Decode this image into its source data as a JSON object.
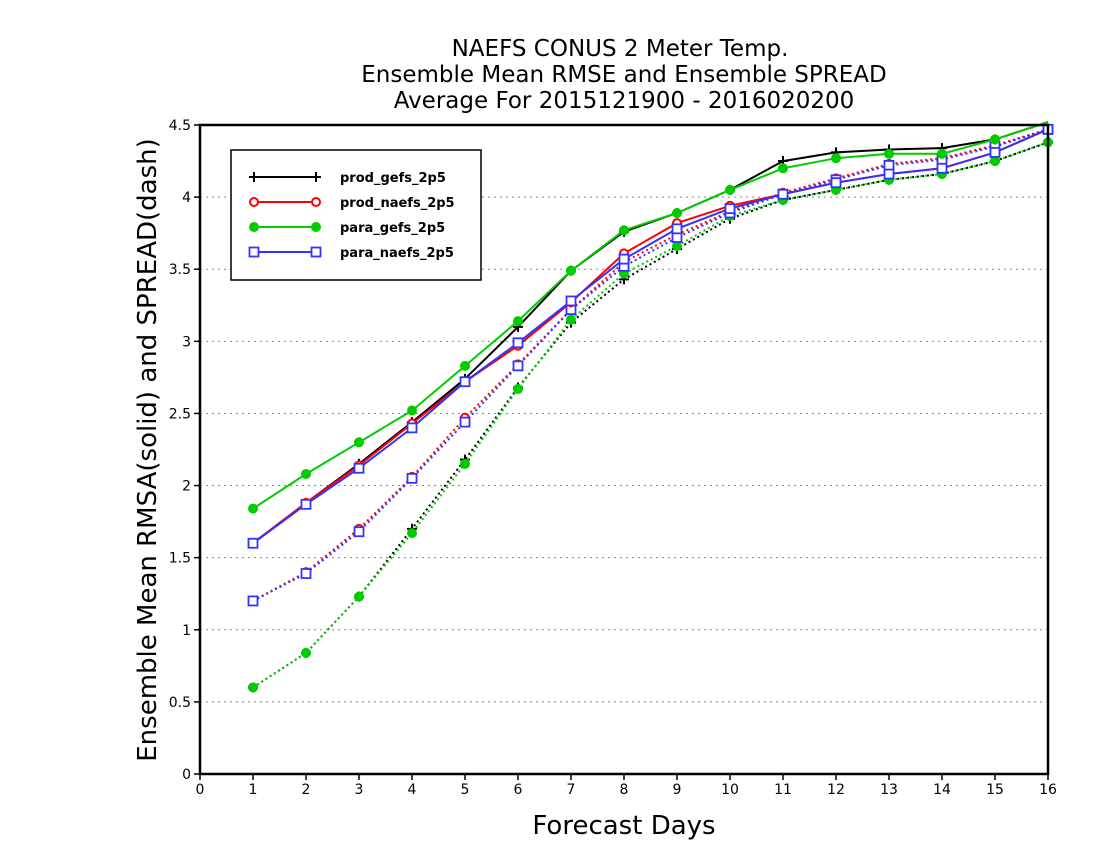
{
  "chart_data": {
    "type": "line",
    "title_lines": [
      "NAEFS CONUS 2 Meter Temp.",
      "Ensemble Mean RMSE and Ensemble SPREAD",
      "Average For 2015121900 - 2016020200"
    ],
    "xlabel": "Forecast Days",
    "ylabel": "Ensemble Mean RMSA(solid) and SPREAD(dash)",
    "xlim": [
      0,
      16
    ],
    "ylim": [
      0,
      4.5
    ],
    "x_ticks": [
      0,
      1,
      2,
      3,
      4,
      5,
      6,
      7,
      8,
      9,
      10,
      11,
      12,
      13,
      14,
      15,
      16
    ],
    "y_ticks": [
      0,
      0.5,
      1,
      1.5,
      2,
      2.5,
      3,
      3.5,
      4,
      4.5
    ],
    "grid": "horizontal dotted",
    "legend_position": "top-left",
    "x": [
      1,
      2,
      3,
      4,
      5,
      6,
      7,
      8,
      9,
      10,
      11,
      12,
      13,
      14,
      15,
      16
    ],
    "series": [
      {
        "name": "prod_gefs_2p5",
        "color": "#000000",
        "marker": "plus",
        "rmse": [
          1.6,
          1.88,
          2.15,
          2.44,
          2.74,
          3.1,
          3.49,
          3.76,
          3.89,
          4.05,
          4.25,
          4.31,
          4.33,
          4.34,
          4.4,
          4.55
        ],
        "spread": [
          0.6,
          0.84,
          1.23,
          1.7,
          2.18,
          2.68,
          3.13,
          3.43,
          3.64,
          3.85,
          3.98,
          4.05,
          4.12,
          4.16,
          4.25,
          4.38
        ]
      },
      {
        "name": "prod_naefs_2p5",
        "color": "#ff0000",
        "marker": "circle",
        "rmse": [
          1.6,
          1.88,
          2.14,
          2.43,
          2.72,
          2.97,
          3.27,
          3.61,
          3.82,
          3.94,
          4.02,
          4.1,
          4.16,
          4.2,
          4.31,
          4.47
        ],
        "spread": [
          1.2,
          1.4,
          1.7,
          2.06,
          2.47,
          2.84,
          3.22,
          3.55,
          3.74,
          3.9,
          4.03,
          4.13,
          4.23,
          4.27,
          4.36,
          4.47
        ]
      },
      {
        "name": "para_gefs_2p5",
        "color": "#00cc00",
        "marker": "filled-circle",
        "rmse": [
          1.84,
          2.08,
          2.3,
          2.52,
          2.83,
          3.14,
          3.49,
          3.77,
          3.89,
          4.05,
          4.2,
          4.27,
          4.3,
          4.3,
          4.4,
          4.55
        ],
        "spread": [
          0.6,
          0.84,
          1.23,
          1.67,
          2.15,
          2.67,
          3.15,
          3.47,
          3.66,
          3.87,
          3.98,
          4.05,
          4.12,
          4.16,
          4.25,
          4.38
        ]
      },
      {
        "name": "para_naefs_2p5",
        "color": "#3333ff",
        "marker": "square",
        "rmse": [
          1.6,
          1.87,
          2.12,
          2.4,
          2.72,
          2.99,
          3.28,
          3.57,
          3.78,
          3.92,
          4.02,
          4.1,
          4.16,
          4.2,
          4.31,
          4.47
        ],
        "spread": [
          1.2,
          1.39,
          1.68,
          2.05,
          2.44,
          2.83,
          3.22,
          3.52,
          3.72,
          3.89,
          4.02,
          4.12,
          4.22,
          4.26,
          4.35,
          4.47
        ]
      }
    ]
  }
}
